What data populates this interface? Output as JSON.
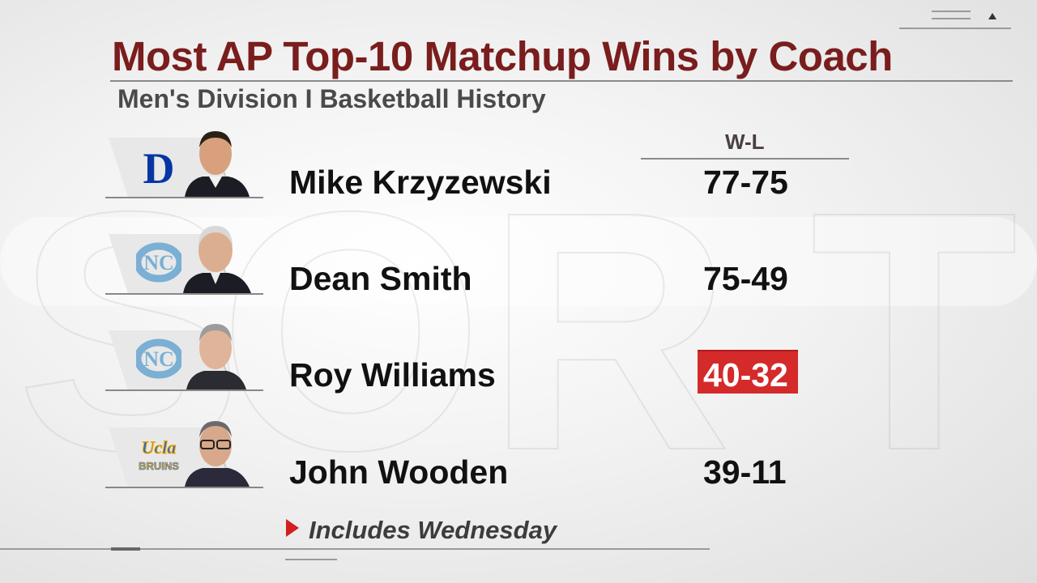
{
  "header": {
    "title": "Most AP Top-10 Matchup Wins by Coach",
    "subtitle": "Men's Division I Basketball History",
    "column_label": "W-L"
  },
  "coaches": [
    {
      "name": "Mike Krzyzewski",
      "record": "77-75",
      "team_logo": "duke-logo",
      "highlight": false
    },
    {
      "name": "Dean Smith",
      "record": "75-49",
      "team_logo": "unc-logo",
      "highlight": false
    },
    {
      "name": "Roy Williams",
      "record": "40-32",
      "team_logo": "unc-logo",
      "highlight": true
    },
    {
      "name": "John Wooden",
      "record": "39-11",
      "team_logo": "ucla-logo",
      "highlight": false
    }
  ],
  "footnote": {
    "text": "Includes Wednesday",
    "marker": "red-triangle-icon"
  },
  "colors": {
    "title": "#7a1d1d",
    "highlight": "#d42a2a",
    "duke_blue": "#0736a4",
    "unc_blue": "#7bafd4",
    "ucla_blue": "#2d68c4",
    "ucla_gold": "#f2a900"
  }
}
